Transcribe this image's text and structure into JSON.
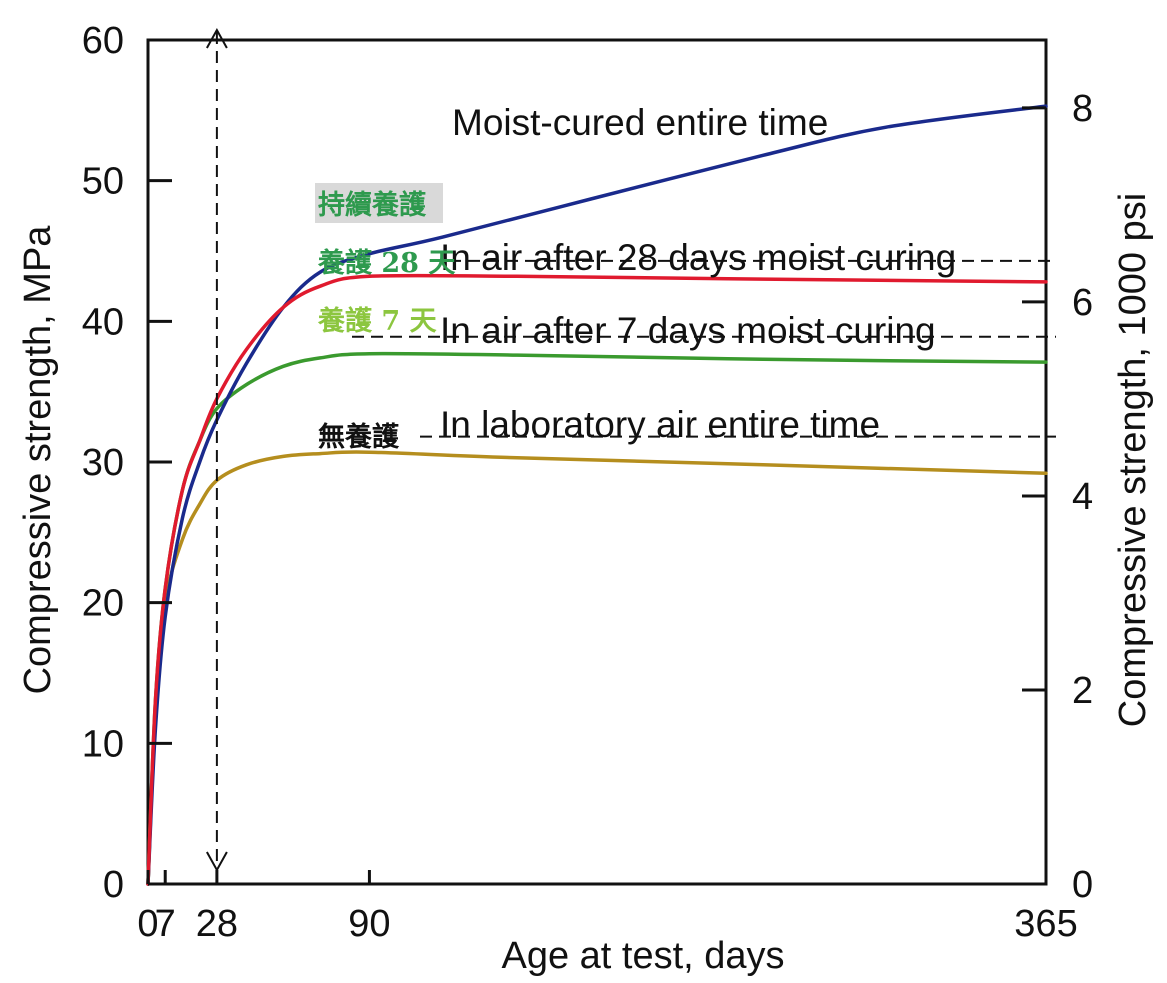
{
  "chart_data": {
    "type": "line",
    "xlabel": "Age at test, days",
    "ylabel": "Compressive strength, MPa",
    "y2label": "Compressive strength, 1000 psi",
    "xlim": [
      0,
      365
    ],
    "ylim": [
      0,
      60
    ],
    "y2lim": [
      0,
      8.7
    ],
    "x_ticks": [
      0,
      7,
      28,
      90,
      365
    ],
    "y_ticks": [
      0,
      10,
      20,
      30,
      40,
      50,
      60
    ],
    "y2_ticks": [
      0,
      2,
      4,
      6,
      8
    ],
    "grid": false,
    "legend": "none",
    "series": [
      {
        "name": "Moist-cured entire time",
        "color": "#1a2a8c",
        "points": [
          [
            0,
            0
          ],
          [
            3,
            11
          ],
          [
            7,
            19
          ],
          [
            14,
            26
          ],
          [
            21,
            30
          ],
          [
            28,
            33
          ],
          [
            40,
            37
          ],
          [
            55,
            41
          ],
          [
            70,
            43.5
          ],
          [
            90,
            44.8
          ],
          [
            120,
            46
          ],
          [
            180,
            48.7
          ],
          [
            250,
            51.8
          ],
          [
            300,
            53.8
          ],
          [
            365,
            55.3
          ]
        ]
      },
      {
        "name": "In air after 28 days moist curing",
        "color": "#e01a2e",
        "points": [
          [
            0,
            0
          ],
          [
            3,
            13
          ],
          [
            7,
            21
          ],
          [
            14,
            28
          ],
          [
            21,
            31.5
          ],
          [
            28,
            34.5
          ],
          [
            40,
            38
          ],
          [
            55,
            41
          ],
          [
            70,
            42.5
          ],
          [
            90,
            43.2
          ],
          [
            150,
            43.2
          ],
          [
            250,
            43
          ],
          [
            365,
            42.8
          ]
        ]
      },
      {
        "name": "In air after 7 days moist curing",
        "color": "#3a9a2e",
        "points": [
          [
            0,
            0
          ],
          [
            3,
            13
          ],
          [
            7,
            21
          ],
          [
            14,
            28
          ],
          [
            21,
            31.5
          ],
          [
            28,
            33.8
          ],
          [
            40,
            35.5
          ],
          [
            55,
            36.8
          ],
          [
            70,
            37.4
          ],
          [
            90,
            37.7
          ],
          [
            150,
            37.6
          ],
          [
            250,
            37.3
          ],
          [
            365,
            37.1
          ]
        ]
      },
      {
        "name": "In laboratory air entire time",
        "color": "#b58e1e",
        "points": [
          [
            0,
            0
          ],
          [
            3,
            12
          ],
          [
            7,
            20
          ],
          [
            14,
            24.5
          ],
          [
            21,
            27
          ],
          [
            28,
            28.7
          ],
          [
            40,
            29.8
          ],
          [
            55,
            30.4
          ],
          [
            70,
            30.6
          ],
          [
            90,
            30.7
          ],
          [
            150,
            30.3
          ],
          [
            250,
            29.8
          ],
          [
            365,
            29.2
          ]
        ]
      }
    ],
    "annotations": {
      "cjk_continuous": "持續養護",
      "cjk_28": "養護 28 天",
      "cjk_7": "養護 7 天",
      "cjk_none": "無養護",
      "ref_line_28_value": 44.3,
      "ref_line_7_value": 38.9,
      "ref_line_none_value": 31.8,
      "arrow_x": 28,
      "colors": {
        "cjk_continuous": "#2e9a4e",
        "cjk_continuous_bg": "#d9d9d9",
        "cjk_28": "#2e9a4e",
        "cjk_7": "#8cc63f",
        "cjk_none": "#111111"
      }
    }
  }
}
